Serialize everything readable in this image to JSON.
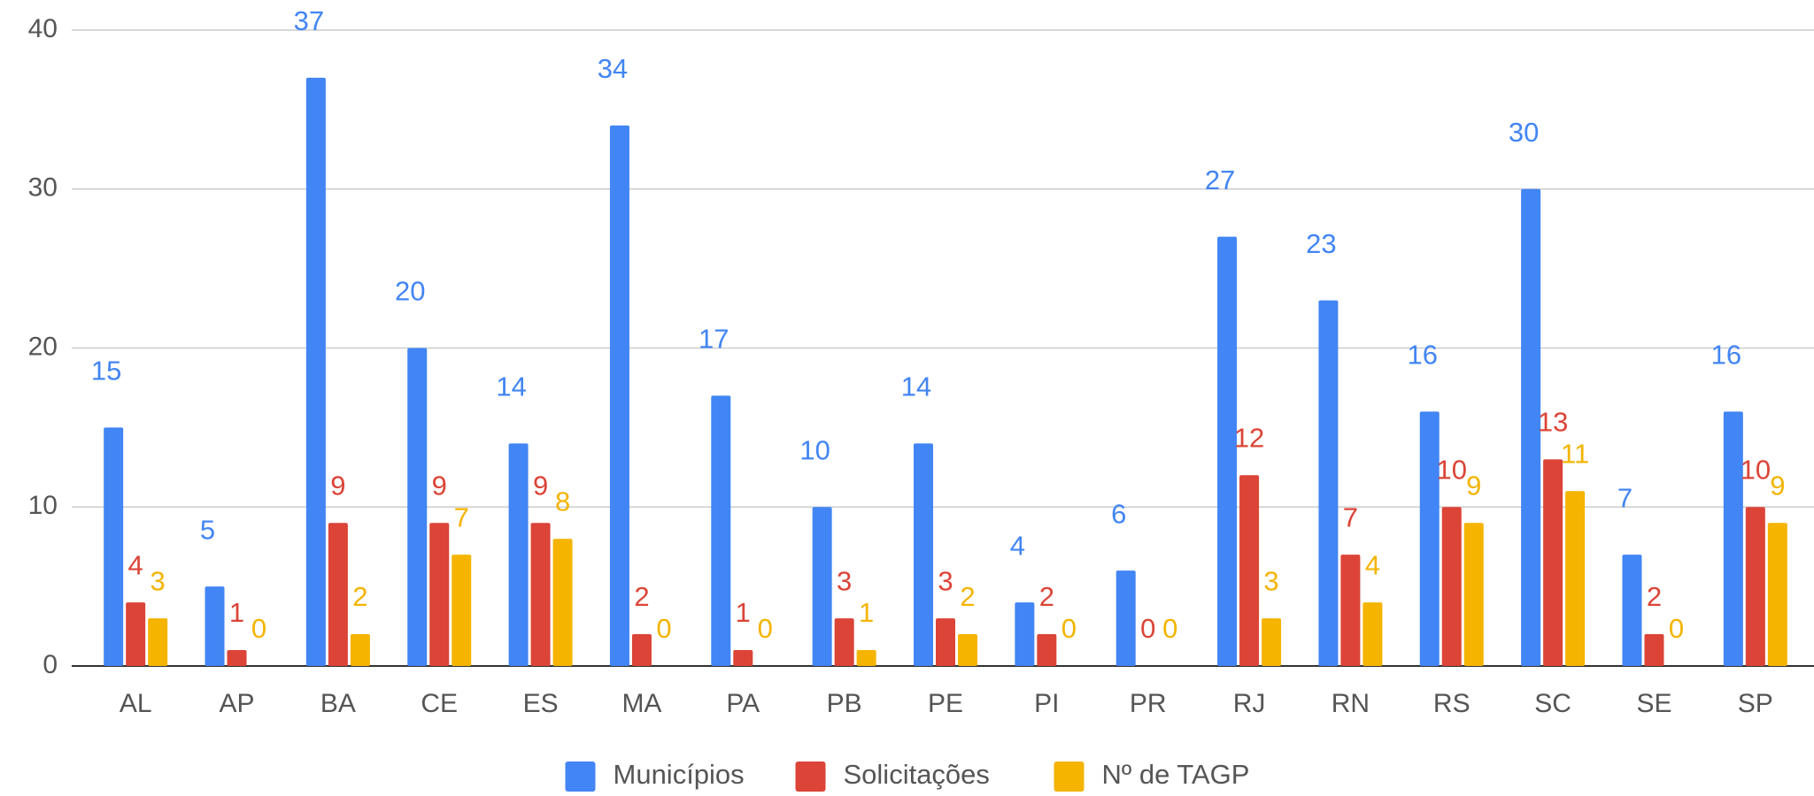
{
  "chart_data": {
    "type": "bar",
    "categories": [
      "AL",
      "AP",
      "BA",
      "CE",
      "ES",
      "MA",
      "PA",
      "PB",
      "PE",
      "PI",
      "PR",
      "RJ",
      "RN",
      "RS",
      "SC",
      "SE",
      "SP"
    ],
    "series": [
      {
        "name": "Municípios",
        "color": "#4285f4",
        "values": [
          15,
          5,
          37,
          20,
          14,
          34,
          17,
          10,
          14,
          4,
          6,
          27,
          23,
          16,
          30,
          7,
          16
        ]
      },
      {
        "name": "Solicitações",
        "color": "#db4437",
        "values": [
          4,
          1,
          9,
          9,
          9,
          2,
          1,
          3,
          3,
          2,
          0,
          12,
          7,
          10,
          13,
          2,
          10
        ]
      },
      {
        "name": "Nº de TAGP",
        "color": "#f4b400",
        "values": [
          3,
          0,
          2,
          7,
          8,
          0,
          0,
          1,
          2,
          0,
          0,
          3,
          4,
          9,
          11,
          0,
          9
        ]
      }
    ],
    "ylim": [
      0,
      40
    ],
    "yticks": [
      0,
      10,
      20,
      30,
      40
    ],
    "grid": true,
    "legend": "bottom"
  }
}
